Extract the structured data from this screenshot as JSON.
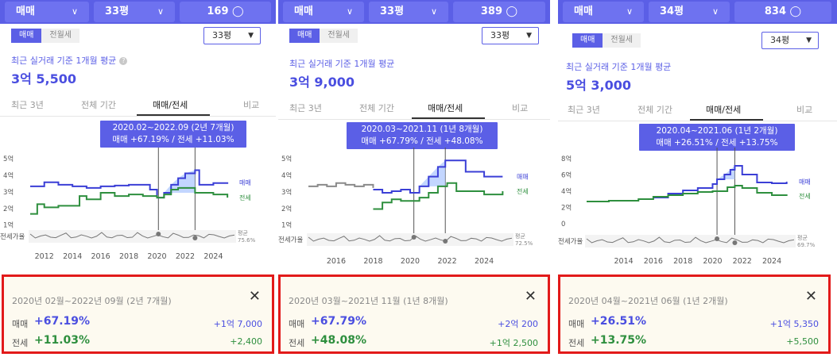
{
  "panels": [
    {
      "trade_type": "매매",
      "area_filter": "33평",
      "listing_count": "169",
      "toggle": [
        "매매",
        "전월세"
      ],
      "size_select": "33평",
      "avg_label": "최근 실거래 기준 1개월 평균",
      "avg_value": "3억 5,500",
      "tabs": [
        "최근 3년",
        "전체 기간",
        "매매/전세",
        "비교"
      ],
      "tooltip_line1": "2020.02~2022.09 (2년 7개월)",
      "tooltip_line2": "매매 +67.19%  /  전세 +11.03%",
      "summary": {
        "period": "2020년 02월~2022년 09월 (2년 7개월)",
        "buy_label": "매매",
        "buy_pct": "+67.19%",
        "buy_amt": "+1억 7,000",
        "rent_label": "전세",
        "rent_pct": "+11.03%",
        "rent_amt": "+2,400"
      }
    },
    {
      "trade_type": "매매",
      "area_filter": "33평",
      "listing_count": "389",
      "toggle": [
        "매매",
        "전월세"
      ],
      "size_select": "33평",
      "avg_label": "최근 실거래 기준 1개월 평균",
      "avg_value": "3억 9,000",
      "tabs": [
        "최근 3년",
        "전체 기간",
        "매매/전세",
        "비교"
      ],
      "tooltip_line1": "2020.03~2021.11 (1년 8개월)",
      "tooltip_line2": "매매 +67.79%  /  전세 +48.08%",
      "summary": {
        "period": "2020년 03월~2021년 11월 (1년 8개월)",
        "buy_label": "매매",
        "buy_pct": "+67.79%",
        "buy_amt": "+2억 200",
        "rent_label": "전세",
        "rent_pct": "+48.08%",
        "rent_amt": "+1억 2,500"
      }
    },
    {
      "trade_type": "매매",
      "area_filter": "34평",
      "listing_count": "834",
      "toggle": [
        "매매",
        "전월세"
      ],
      "size_select": "34평",
      "avg_label": "최근 실거래 기준 1개월 평균",
      "avg_value": "5억 3,000",
      "tabs": [
        "최근 3년",
        "전체 기간",
        "매매/전세",
        "비교"
      ],
      "tooltip_line1": "2020.04~2021.06 (1년 2개월)",
      "tooltip_line2": "매매 +26.51%  /  전세 +13.75%",
      "summary": {
        "period": "2020년 04월~2021년 06월 (1년 2개월)",
        "buy_label": "매매",
        "buy_pct": "+26.51%",
        "buy_amt": "+1억 5,350",
        "rent_label": "전세",
        "rent_pct": "+13.75%",
        "rent_amt": "+5,500"
      }
    }
  ],
  "chart_data": [
    {
      "type": "line",
      "ytick_labels": [
        "5억",
        "4억",
        "3억",
        "2억",
        "1억"
      ],
      "x_ticks": [
        "2012",
        "2014",
        "2016",
        "2018",
        "2020",
        "2022",
        "2024"
      ],
      "ylim": [
        0.6,
        5.4
      ],
      "xlim": [
        2011,
        2025.5
      ],
      "sel_range": [
        2020.1,
        2022.7
      ],
      "series": [
        {
          "name": "매매",
          "x": [
            2011,
            2012,
            2013,
            2014,
            2015,
            2016,
            2017,
            2018,
            2019,
            2019.5,
            2020,
            2020.5,
            2021,
            2021.5,
            2022,
            2022.7,
            2023,
            2024,
            2025
          ],
          "values": [
            3.3,
            3.55,
            3.4,
            3.3,
            3.2,
            3.3,
            3.35,
            3.4,
            3.4,
            3.1,
            2.6,
            2.9,
            3.4,
            3.8,
            4.1,
            4.3,
            3.4,
            3.5,
            3.55
          ]
        },
        {
          "name": "전세",
          "x": [
            2011,
            2011.5,
            2012,
            2013,
            2014,
            2014.5,
            2015,
            2016,
            2017,
            2018,
            2019,
            2020,
            2020.5,
            2021,
            2021.5,
            2022,
            2022.7,
            2023,
            2024,
            2025
          ],
          "values": [
            1.6,
            2.2,
            2.0,
            2.1,
            2.1,
            2.7,
            2.5,
            2.9,
            2.7,
            2.8,
            2.7,
            2.6,
            2.8,
            3.1,
            3.2,
            3.2,
            2.9,
            2.9,
            2.8,
            2.6
          ]
        }
      ],
      "ratio_label": "전세가율",
      "avg_caption": "평균",
      "avg_ratio": "75.6%"
    },
    {
      "type": "line",
      "ytick_labels": [
        "5억",
        "4억",
        "3억",
        "2억",
        "1억"
      ],
      "x_ticks": [
        "2016",
        "2018",
        "2020",
        "2022",
        "2024"
      ],
      "ylim": [
        0.6,
        5.4
      ],
      "xlim": [
        2014.5,
        2025.5
      ],
      "sel_range": [
        2020.2,
        2021.9
      ],
      "series": [
        {
          "name": "매매",
          "x": [
            2018,
            2018.5,
            2019,
            2019.5,
            2020,
            2020.5,
            2021,
            2021.5,
            2021.9,
            2022.5,
            2023,
            2024,
            2025
          ],
          "values": [
            3.1,
            2.9,
            3.0,
            3.1,
            2.9,
            3.3,
            3.9,
            4.5,
            4.9,
            4.9,
            4.2,
            3.9,
            3.9
          ]
        },
        {
          "name": "전세",
          "x": [
            2018,
            2018.5,
            2019,
            2019.5,
            2020,
            2020.5,
            2021,
            2021.5,
            2022,
            2022.5,
            2023,
            2024,
            2025
          ],
          "values": [
            1.9,
            2.3,
            2.5,
            2.4,
            2.4,
            2.6,
            2.9,
            3.3,
            3.5,
            3.0,
            3.0,
            2.8,
            3.0
          ]
        },
        {
          "name": "",
          "x": [
            2014.5,
            2015,
            2015.5,
            2016,
            2016.5,
            2017,
            2017.5,
            2018
          ],
          "values": [
            3.3,
            3.4,
            3.3,
            3.5,
            3.4,
            3.3,
            3.4,
            3.2
          ]
        }
      ],
      "ratio_label": "전세가율",
      "avg_caption": "평균",
      "avg_ratio": "72.5%"
    },
    {
      "type": "line",
      "ytick_labels": [
        "8억",
        "6억",
        "4억",
        "2억",
        "0"
      ],
      "x_ticks": [
        "2014",
        "2016",
        "2018",
        "2020",
        "2022",
        "2024"
      ],
      "ylim": [
        -0.6,
        9.0
      ],
      "xlim": [
        2011.5,
        2025.5
      ],
      "sel_range": [
        2020.3,
        2021.5
      ],
      "series": [
        {
          "name": "매매",
          "x": [
            2016,
            2017,
            2018,
            2019,
            2020,
            2020.3,
            2020.8,
            2021.2,
            2021.5,
            2022,
            2023,
            2024,
            2025
          ],
          "values": [
            3.3,
            3.8,
            4.2,
            4.5,
            5.0,
            5.6,
            6.2,
            6.8,
            7.3,
            6.2,
            5.2,
            5.1,
            5.3
          ]
        },
        {
          "name": "전세",
          "x": [
            2011.5,
            2013,
            2015,
            2016,
            2017,
            2018,
            2019,
            2020,
            2021,
            2021.5,
            2022,
            2023,
            2024,
            2025
          ],
          "values": [
            2.8,
            2.9,
            3.1,
            3.4,
            3.6,
            3.8,
            4.0,
            4.1,
            4.6,
            4.8,
            4.5,
            3.9,
            3.6,
            3.5
          ]
        }
      ],
      "ratio_label": "전세가율",
      "avg_caption": "평균",
      "avg_ratio": "69.7%"
    }
  ]
}
